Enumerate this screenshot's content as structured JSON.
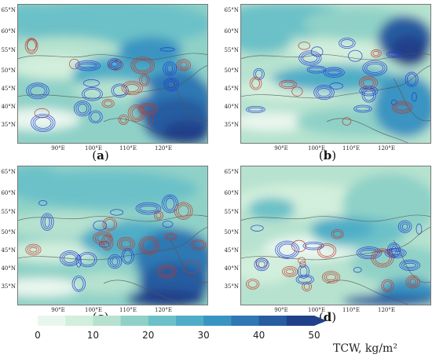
{
  "panels": [
    {
      "id": "a",
      "caption": "a",
      "lat_labels": [
        "65°N",
        "60°N",
        "55°N",
        "50°N",
        "45°N",
        "40°N",
        "35°N"
      ],
      "lon_labels": [
        "90°E",
        "100°E",
        "110°E",
        "120°E"
      ]
    },
    {
      "id": "b",
      "caption": "b",
      "lat_labels": [
        "65°N",
        "60°N",
        "55°N",
        "50°N",
        "45°N",
        "40°N",
        "35°N"
      ],
      "lon_labels": [
        "90°E",
        "100°E",
        "110°E",
        "120°E"
      ]
    },
    {
      "id": "c",
      "caption": "c",
      "lat_labels": [
        "65°N",
        "60°N",
        "55°N",
        "50°N",
        "45°N",
        "40°N",
        "35°N"
      ],
      "lon_labels": [
        "90°E",
        "100°E",
        "110°E",
        "120°E"
      ]
    },
    {
      "id": "d",
      "caption": "d",
      "lat_labels": [
        "65°N",
        "60°N",
        "55°N",
        "50°N",
        "45°N",
        "40°N",
        "35°N"
      ],
      "lon_labels": [
        "90°E",
        "100°E",
        "110°E",
        "120°E"
      ]
    }
  ],
  "colorbar": {
    "title": "TCW, kg/m²",
    "ticks": [
      "0",
      "10",
      "20",
      "30",
      "40",
      "50"
    ],
    "colors": [
      "#e9f6ee",
      "#d2eedc",
      "#b6e2cf",
      "#8fd1c7",
      "#6cc1c8",
      "#4fadc7",
      "#3a94c1",
      "#2f78b3",
      "#285ca0",
      "#20418a"
    ],
    "extend": "max"
  },
  "colors": {
    "contour_positive": "#c0392b",
    "contour_negative": "#1f3ccf",
    "coastline": "#555555"
  }
}
